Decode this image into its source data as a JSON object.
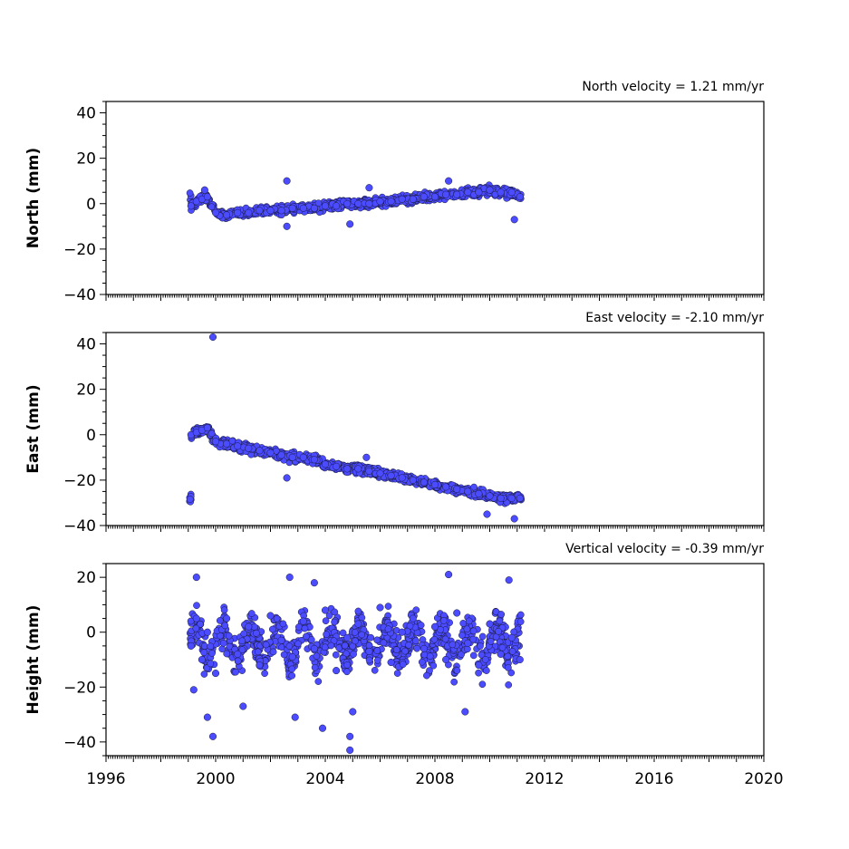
{
  "chart_data": [
    {
      "type": "scatter",
      "title": "North velocity = 1.21 mm/yr",
      "ylabel": "North (mm)",
      "xlim": [
        1996,
        2020
      ],
      "ylim": [
        -40,
        45
      ],
      "yticks": [
        -40,
        -20,
        0,
        20,
        40
      ],
      "series": [
        {
          "color": "#4b4bff",
          "x": [
            1999.1,
            1999.3,
            1999.5,
            1999.7,
            2000.0,
            2000.4,
            2000.8,
            2001.2,
            2001.6,
            2002.0,
            2002.4,
            2002.8,
            2003.2,
            2003.6,
            2004.0,
            2004.4,
            2004.8,
            2005.2,
            2005.6,
            2006.0,
            2006.4,
            2006.8,
            2007.2,
            2007.6,
            2008.0,
            2008.4,
            2008.8,
            2009.2,
            2009.6,
            2010.0,
            2010.4,
            2010.8,
            2011.1,
            2002.6,
            2002.6,
            2004.9,
            2005.6,
            2008.5,
            2010.9,
            1999.6
          ],
          "y": [
            -1,
            1,
            2,
            3,
            -4,
            -5,
            -4,
            -4,
            -3,
            -3,
            -3,
            -2,
            -2,
            -2,
            -1,
            -1,
            0,
            0,
            0,
            1,
            1,
            2,
            2,
            3,
            3,
            4,
            4,
            5,
            5,
            6,
            5,
            5,
            3,
            10,
            -10,
            -9,
            7,
            10,
            -7,
            6
          ]
        }
      ]
    },
    {
      "type": "scatter",
      "title": "East velocity = -2.10 mm/yr",
      "ylabel": "East (mm)",
      "xlim": [
        1996,
        2020
      ],
      "ylim": [
        -40,
        45
      ],
      "yticks": [
        -40,
        -20,
        0,
        20,
        40
      ],
      "series": [
        {
          "color": "#4b4bff",
          "x": [
            1999.1,
            1999.3,
            1999.5,
            1999.7,
            2000.0,
            2000.4,
            2000.8,
            2001.2,
            2001.6,
            2002.0,
            2002.4,
            2002.8,
            2003.2,
            2003.6,
            2004.0,
            2004.4,
            2004.8,
            2005.2,
            2005.6,
            2006.0,
            2006.4,
            2006.8,
            2007.2,
            2007.6,
            2008.0,
            2008.4,
            2008.8,
            2009.2,
            2009.6,
            2010.0,
            2010.4,
            2010.8,
            2011.1,
            1999.9,
            2002.6,
            2005.5,
            2009.9,
            2010.9
          ],
          "y": [
            0,
            1,
            2,
            3,
            -3,
            -4,
            -5,
            -6,
            -7,
            -8,
            -9,
            -10,
            -10,
            -11,
            -13,
            -14,
            -15,
            -15,
            -16,
            -17,
            -18,
            -19,
            -20,
            -21,
            -22,
            -23,
            -24,
            -25,
            -26,
            -27,
            -28,
            -28,
            -28,
            43,
            -19,
            -10,
            -35,
            -37
          ]
        }
      ]
    },
    {
      "type": "scatter",
      "title": "Vertical velocity = -0.39 mm/yr",
      "ylabel": "Height (mm)",
      "xlim": [
        1996,
        2020
      ],
      "ylim": [
        -45,
        25
      ],
      "yticks": [
        -40,
        -20,
        0,
        20
      ],
      "series": [
        {
          "color": "#4b4bff",
          "x": [
            1999.1,
            1999.3,
            1999.5,
            1999.7,
            2000.0,
            2000.4,
            2000.8,
            2001.2,
            2001.6,
            2002.0,
            2002.4,
            2002.8,
            2003.2,
            2003.6,
            2004.0,
            2004.4,
            2004.8,
            2005.2,
            2005.6,
            2006.0,
            2006.4,
            2006.8,
            2007.2,
            2007.6,
            2008.0,
            2008.4,
            2008.8,
            2009.2,
            2009.6,
            2010.0,
            2010.4,
            2010.8,
            2011.1,
            1999.3,
            1999.7,
            1999.9,
            2002.7,
            2002.9,
            2003.6,
            2003.9,
            2004.9,
            2004.9,
            2005.0,
            2008.5,
            2009.1,
            2010.7,
            1999.2,
            2001.0
          ],
          "y": [
            -5,
            5,
            -10,
            0,
            -15,
            5,
            -8,
            2,
            -12,
            6,
            -3,
            -9,
            4,
            -6,
            8,
            -14,
            -2,
            3,
            -7,
            9,
            -11,
            0,
            5,
            -6,
            2,
            -10,
            7,
            -4,
            -12,
            3,
            -8,
            -2,
            -10,
            20,
            -31,
            -38,
            20,
            -31,
            18,
            -35,
            -38,
            -43,
            -29,
            21,
            -29,
            19,
            -21,
            -27
          ]
        }
      ]
    }
  ],
  "xaxis": {
    "ticks": [
      1996,
      2000,
      2004,
      2008,
      2012,
      2016,
      2020
    ],
    "labels": [
      "1996",
      "2000",
      "2004",
      "2008",
      "2012",
      "2016",
      "2020"
    ]
  }
}
